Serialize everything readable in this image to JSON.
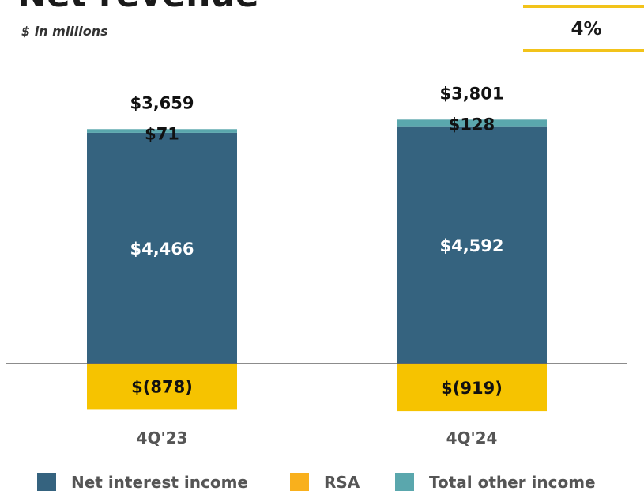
{
  "chart_data": {
    "type": "stacked-bar",
    "title": "Net revenue",
    "subtitle": "$ in millions",
    "badge": "4%",
    "categories": [
      "4Q'23",
      "4Q'24"
    ],
    "series": [
      {
        "name": "Net interest income",
        "color": "#35637f",
        "values": [
          4466,
          4592
        ],
        "value_labels": [
          "$4,466",
          "$4,592"
        ]
      },
      {
        "name": "RSA",
        "color": "#f6c300",
        "legend_color": "#f9b01c",
        "values": [
          -878,
          -919
        ],
        "value_labels": [
          "$(878)",
          "$(919)"
        ]
      },
      {
        "name": "Total other income",
        "color": "#5aa7ad",
        "values": [
          71,
          128
        ],
        "value_labels": [
          "$71",
          "$128"
        ]
      }
    ],
    "totals": {
      "values": [
        3659,
        3801
      ],
      "value_labels": [
        "$3,659",
        "$3,801"
      ]
    }
  }
}
